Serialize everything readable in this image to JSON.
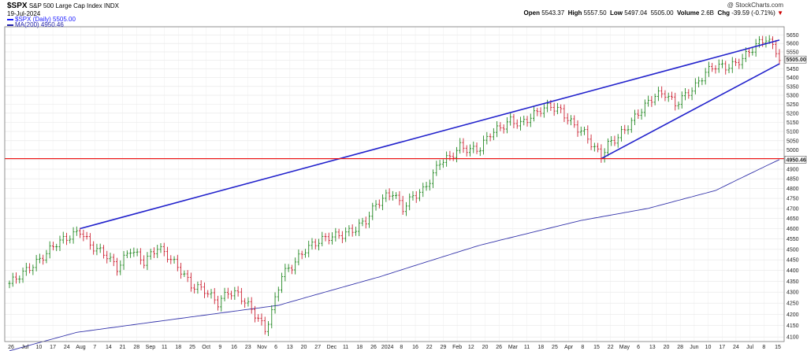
{
  "header": {
    "symbol": "$SPX",
    "name": "S&P 500 Large Cap Index",
    "exchange": "INDX",
    "date": "19-Jul-2024",
    "watermark": "@ StockCharts.com",
    "quote": {
      "open_label": "Open",
      "open": "5543.37",
      "high_label": "High",
      "high": "5557.50",
      "low_label": "Low",
      "low": "5497.04",
      "close_label": "",
      "close": "5505.00",
      "volume_label": "Volume",
      "volume": "2.6B",
      "chg_label": "Chg",
      "chg": "-39.59 (-0.71%)",
      "chg_arrow": "▼"
    },
    "legend": [
      {
        "text": "$SPX (Daily) 5505.00",
        "color": "#1a1aff"
      },
      {
        "text": "MA(200) 4950.46",
        "color": "#2222aa"
      }
    ]
  },
  "chart_data": {
    "type": "ohlc-bar",
    "title": "$SPX S&P 500 Large Cap Index INDX",
    "y_scale": "log",
    "ylim": [
      4080,
      5700
    ],
    "y_ticks": [
      4100,
      4150,
      4200,
      4250,
      4300,
      4350,
      4400,
      4450,
      4500,
      4550,
      4600,
      4650,
      4700,
      4750,
      4800,
      4850,
      4900,
      4950,
      5000,
      5050,
      5100,
      5150,
      5200,
      5250,
      5300,
      5350,
      5400,
      5450,
      5500,
      5550,
      5600,
      5650
    ],
    "last_price_label": "5505.00",
    "ma_label": "4950.46",
    "x_labels": [
      "26",
      "Jul",
      "10",
      "17",
      "24",
      "Aug",
      "7",
      "14",
      "21",
      "28",
      "Sep",
      "11",
      "18",
      "25",
      "Oct",
      "9",
      "16",
      "23",
      "Nov",
      "6",
      "13",
      "20",
      "27",
      "Dec",
      "11",
      "18",
      "26",
      "2024",
      "8",
      "16",
      "22",
      "29",
      "Feb",
      "12",
      "20",
      "26",
      "Mar",
      "11",
      "18",
      "25",
      "Apr",
      "8",
      "15",
      "22",
      "May",
      "6",
      "13",
      "20",
      "28",
      "Jun",
      "10",
      "17",
      "24",
      "Jul",
      "8",
      "15"
    ],
    "price_anchors": [
      [
        0,
        4340
      ],
      [
        5,
        4400
      ],
      [
        9,
        4450
      ],
      [
        14,
        4530
      ],
      [
        19,
        4570
      ],
      [
        21,
        4590
      ],
      [
        24,
        4520
      ],
      [
        29,
        4470
      ],
      [
        32,
        4410
      ],
      [
        36,
        4500
      ],
      [
        40,
        4440
      ],
      [
        44,
        4510
      ],
      [
        47,
        4470
      ],
      [
        51,
        4400
      ],
      [
        54,
        4330
      ],
      [
        58,
        4310
      ],
      [
        62,
        4250
      ],
      [
        65,
        4300
      ],
      [
        68,
        4290
      ],
      [
        71,
        4240
      ],
      [
        74,
        4180
      ],
      [
        76,
        4130
      ],
      [
        78,
        4210
      ],
      [
        81,
        4380
      ],
      [
        84,
        4420
      ],
      [
        88,
        4500
      ],
      [
        92,
        4540
      ],
      [
        95,
        4560
      ],
      [
        99,
        4570
      ],
      [
        103,
        4600
      ],
      [
        106,
        4640
      ],
      [
        109,
        4720
      ],
      [
        112,
        4760
      ],
      [
        114,
        4780
      ],
      [
        117,
        4700
      ],
      [
        120,
        4760
      ],
      [
        123,
        4790
      ],
      [
        126,
        4870
      ],
      [
        128,
        4940
      ],
      [
        131,
        4960
      ],
      [
        134,
        5020
      ],
      [
        137,
        5000
      ],
      [
        140,
        5010
      ],
      [
        143,
        5090
      ],
      [
        146,
        5120
      ],
      [
        149,
        5160
      ],
      [
        152,
        5140
      ],
      [
        155,
        5180
      ],
      [
        158,
        5220
      ],
      [
        161,
        5240
      ],
      [
        164,
        5210
      ],
      [
        168,
        5130
      ],
      [
        171,
        5090
      ],
      [
        174,
        5010
      ],
      [
        176,
        4970
      ],
      [
        178,
        5030
      ],
      [
        181,
        5070
      ],
      [
        184,
        5130
      ],
      [
        187,
        5200
      ],
      [
        190,
        5260
      ],
      [
        192,
        5300
      ],
      [
        195,
        5310
      ],
      [
        198,
        5250
      ],
      [
        201,
        5300
      ],
      [
        204,
        5350
      ],
      [
        207,
        5430
      ],
      [
        210,
        5470
      ],
      [
        213,
        5460
      ],
      [
        216,
        5480
      ],
      [
        219,
        5530
      ],
      [
        222,
        5590
      ],
      [
        225,
        5630
      ],
      [
        228,
        5560
      ],
      [
        229,
        5505
      ]
    ],
    "ma200_anchors": [
      [
        0,
        4040
      ],
      [
        20,
        4120
      ],
      [
        50,
        4180
      ],
      [
        80,
        4240
      ],
      [
        110,
        4370
      ],
      [
        140,
        4520
      ],
      [
        170,
        4640
      ],
      [
        190,
        4700
      ],
      [
        210,
        4790
      ],
      [
        229,
        4950
      ]
    ],
    "trendlines": [
      {
        "name": "upper-channel-line",
        "color": "#2222cc",
        "points": [
          [
            21,
            4600
          ],
          [
            229,
            5620
          ]
        ]
      },
      {
        "name": "lower-channel-line",
        "color": "#2222cc",
        "points": [
          [
            176,
            4955
          ],
          [
            229,
            5480
          ]
        ]
      },
      {
        "name": "horizontal-support-line",
        "color": "#ee1111",
        "points": [
          [
            0,
            4955
          ],
          [
            229,
            4955
          ]
        ]
      }
    ]
  }
}
